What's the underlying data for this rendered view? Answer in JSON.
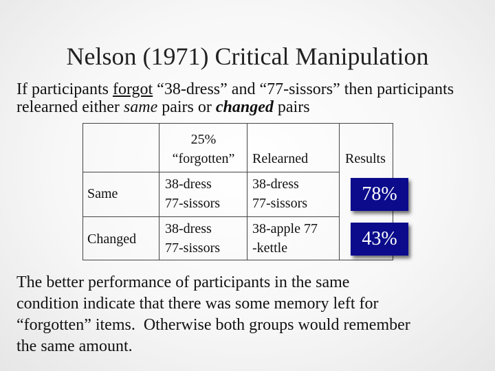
{
  "slide": {
    "title": "Nelson (1971) Critical Manipulation",
    "intro": {
      "part1": "If participants ",
      "underlined": "forgot",
      "part2": " “38-dress” and “77-sissors” then participants relearned either ",
      "emphasis_same": "same",
      "part3": " pairs or ",
      "emphasis_changed": "changed",
      "part4": " pairs"
    },
    "table": {
      "headers": {
        "forgotten_line1": "25%",
        "forgotten_line2": "“forgotten”",
        "relearned": "Relearned",
        "results": "Results"
      },
      "rows": [
        {
          "label": "Same",
          "forgotten_line1": "38-dress",
          "forgotten_line2": "77-sissors",
          "relearned_line1": "38-dress",
          "relearned_line2": "77-sissors",
          "result": "78%"
        },
        {
          "label": "Changed",
          "forgotten_line1": "38-dress",
          "forgotten_line2": "77-sissors",
          "relearned_line1": "38-apple 77",
          "relearned_line2": "-kettle",
          "result": "43%"
        }
      ]
    },
    "conclusion": {
      "line1": "The better performance of participants in the same",
      "line2": "condition indicate that there was some memory left for",
      "line3": "“forgotten” items.  Otherwise both groups would remember",
      "line4": "the same amount."
    },
    "colors": {
      "result_box": "#0b0b8c",
      "result_text": "#ffffff"
    }
  }
}
